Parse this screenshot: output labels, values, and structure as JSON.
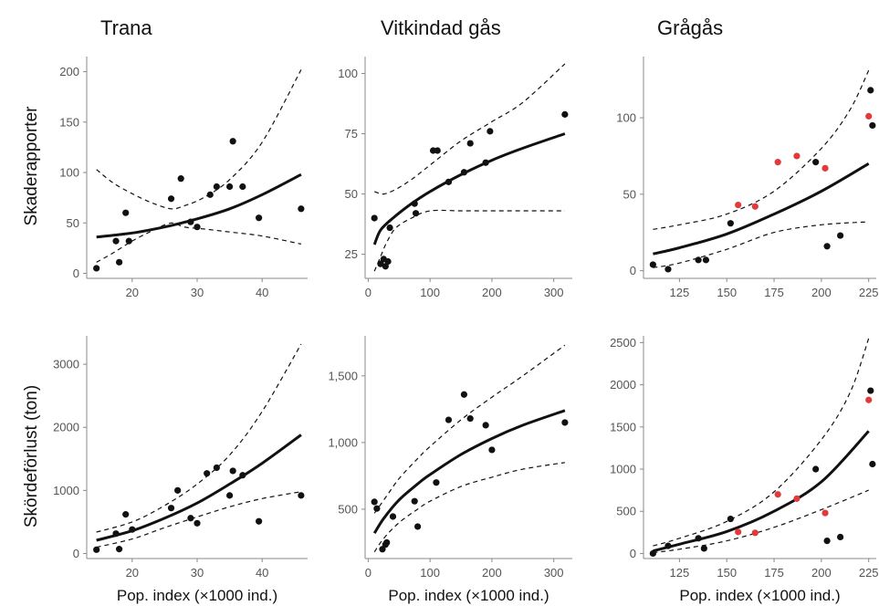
{
  "column_titles": [
    "Trana",
    "Vitkindad gås",
    "Grågås"
  ],
  "row_labels": [
    "Skaderapporter",
    "Skördeförlust (ton)"
  ],
  "colors": {
    "point": "#111111",
    "highlight": "#e03a3a",
    "axis": "#888888",
    "line": "#111111"
  },
  "chart_data": [
    {
      "id": "trana-skador",
      "type": "scatter",
      "title": "",
      "xlabel": "",
      "ylabel": "",
      "xlim": [
        13,
        47
      ],
      "ylim": [
        -5,
        215
      ],
      "xticks": [
        20,
        30,
        40
      ],
      "yticks": [
        0,
        50,
        100,
        150,
        200
      ],
      "points": [
        [
          14.5,
          5
        ],
        [
          17.5,
          32
        ],
        [
          18,
          11
        ],
        [
          19,
          60
        ],
        [
          19.5,
          32
        ],
        [
          26,
          74
        ],
        [
          27.5,
          94
        ],
        [
          29,
          51
        ],
        [
          30,
          46
        ],
        [
          32,
          78
        ],
        [
          33,
          86
        ],
        [
          35,
          86
        ],
        [
          35.5,
          131
        ],
        [
          37,
          86
        ],
        [
          39.5,
          55
        ],
        [
          46,
          64
        ]
      ],
      "fit": [
        [
          14.5,
          36
        ],
        [
          20,
          40
        ],
        [
          25,
          46
        ],
        [
          30,
          54
        ],
        [
          35,
          64
        ],
        [
          40,
          78
        ],
        [
          46,
          98
        ]
      ],
      "ci_upper": [
        [
          14.5,
          103
        ],
        [
          17,
          90
        ],
        [
          20,
          79
        ],
        [
          23,
          70
        ],
        [
          26,
          64
        ],
        [
          28,
          67
        ],
        [
          31,
          75
        ],
        [
          35,
          93
        ],
        [
          40,
          130
        ],
        [
          46,
          202
        ]
      ],
      "ci_lower": [
        [
          14.5,
          11
        ],
        [
          17,
          20
        ],
        [
          20,
          32
        ],
        [
          23,
          42
        ],
        [
          26,
          50
        ],
        [
          28,
          46
        ],
        [
          31,
          44
        ],
        [
          35,
          41
        ],
        [
          40,
          37
        ],
        [
          46,
          29
        ]
      ]
    },
    {
      "id": "vitkindad-skador",
      "type": "scatter",
      "title": "",
      "xlabel": "",
      "ylabel": "",
      "xlim": [
        -5,
        330
      ],
      "ylim": [
        15,
        107
      ],
      "xticks": [
        0,
        100,
        200,
        300
      ],
      "yticks": [
        25,
        50,
        75,
        100
      ],
      "points": [
        [
          10,
          40
        ],
        [
          20,
          21
        ],
        [
          25,
          23
        ],
        [
          28,
          20
        ],
        [
          32,
          22
        ],
        [
          35,
          36
        ],
        [
          75,
          46
        ],
        [
          77,
          42
        ],
        [
          105,
          68
        ],
        [
          112,
          68
        ],
        [
          130,
          55
        ],
        [
          155,
          59
        ],
        [
          165,
          71
        ],
        [
          190,
          63
        ],
        [
          197,
          76
        ],
        [
          318,
          83
        ]
      ],
      "fit": [
        [
          10,
          29
        ],
        [
          20,
          35
        ],
        [
          40,
          40
        ],
        [
          70,
          46
        ],
        [
          100,
          51
        ],
        [
          150,
          58
        ],
        [
          200,
          64
        ],
        [
          250,
          69
        ],
        [
          318,
          75
        ]
      ],
      "ci_upper": [
        [
          10,
          51
        ],
        [
          25,
          50
        ],
        [
          45,
          52
        ],
        [
          70,
          56
        ],
        [
          100,
          62
        ],
        [
          150,
          72
        ],
        [
          200,
          80
        ],
        [
          250,
          88
        ],
        [
          318,
          104
        ]
      ],
      "ci_lower": [
        [
          10,
          18
        ],
        [
          20,
          24
        ],
        [
          30,
          30
        ],
        [
          45,
          36
        ],
        [
          70,
          40
        ],
        [
          100,
          43
        ],
        [
          150,
          43
        ],
        [
          200,
          43
        ],
        [
          250,
          43
        ],
        [
          318,
          43
        ]
      ]
    },
    {
      "id": "gragas-skador",
      "type": "scatter",
      "title": "",
      "xlabel": "",
      "ylabel": "",
      "xlim": [
        106,
        229
      ],
      "ylim": [
        -5,
        140
      ],
      "xticks": [
        125,
        150,
        175,
        200,
        225
      ],
      "yticks": [
        0,
        50,
        100
      ],
      "points": [
        [
          111,
          4
        ],
        [
          119,
          1
        ],
        [
          135,
          7
        ],
        [
          139,
          7
        ],
        [
          152,
          31
        ],
        [
          197,
          71
        ],
        [
          203,
          16
        ],
        [
          210,
          23
        ],
        [
          226,
          118
        ],
        [
          227,
          95
        ]
      ],
      "highlight_points": [
        [
          156,
          43
        ],
        [
          165,
          42
        ],
        [
          177,
          71
        ],
        [
          187,
          75
        ],
        [
          202,
          67
        ],
        [
          225,
          101
        ]
      ],
      "fit": [
        [
          111,
          11
        ],
        [
          125,
          15
        ],
        [
          150,
          24
        ],
        [
          175,
          37
        ],
        [
          200,
          52
        ],
        [
          225,
          70
        ]
      ],
      "ci_upper": [
        [
          111,
          27
        ],
        [
          125,
          30
        ],
        [
          150,
          37
        ],
        [
          175,
          52
        ],
        [
          200,
          80
        ],
        [
          215,
          105
        ],
        [
          225,
          131
        ]
      ],
      "ci_lower": [
        [
          111,
          2
        ],
        [
          125,
          5
        ],
        [
          150,
          14
        ],
        [
          175,
          25
        ],
        [
          200,
          30
        ],
        [
          225,
          32
        ]
      ]
    },
    {
      "id": "trana-skord",
      "type": "scatter",
      "title": "",
      "xlabel": "Pop. index (×1000 ind.)",
      "ylabel": "",
      "xlim": [
        13,
        47
      ],
      "ylim": [
        -80,
        3450
      ],
      "xticks": [
        20,
        30,
        40
      ],
      "yticks": [
        0,
        1000,
        2000,
        3000
      ],
      "points": [
        [
          14.5,
          60
        ],
        [
          17.5,
          315
        ],
        [
          18,
          70
        ],
        [
          19,
          620
        ],
        [
          20,
          380
        ],
        [
          26,
          720
        ],
        [
          27,
          1000
        ],
        [
          29,
          560
        ],
        [
          30,
          480
        ],
        [
          31.5,
          1270
        ],
        [
          33,
          1360
        ],
        [
          35,
          920
        ],
        [
          35.5,
          1310
        ],
        [
          37,
          1240
        ],
        [
          39.5,
          510
        ],
        [
          46,
          920
        ]
      ],
      "fit": [
        [
          14.5,
          210
        ],
        [
          20,
          360
        ],
        [
          25,
          560
        ],
        [
          30,
          800
        ],
        [
          35,
          1100
        ],
        [
          40,
          1430
        ],
        [
          46,
          1880
        ]
      ],
      "ci_upper": [
        [
          14.5,
          340
        ],
        [
          20,
          500
        ],
        [
          25,
          760
        ],
        [
          30,
          1100
        ],
        [
          35,
          1560
        ],
        [
          40,
          2250
        ],
        [
          46,
          3320
        ]
      ],
      "ci_lower": [
        [
          14.5,
          100
        ],
        [
          20,
          230
        ],
        [
          25,
          410
        ],
        [
          30,
          580
        ],
        [
          35,
          740
        ],
        [
          40,
          870
        ],
        [
          46,
          980
        ]
      ]
    },
    {
      "id": "vitkindad-skord",
      "type": "scatter",
      "title": "",
      "xlabel": "Pop. index (×1000 ind.)",
      "ylabel": "",
      "xlim": [
        -5,
        330
      ],
      "ylim": [
        130,
        1800
      ],
      "xticks": [
        0,
        100,
        200,
        300
      ],
      "yticks": [
        500,
        1000,
        1500
      ],
      "yticklabels": [
        "500",
        "1,000",
        "1,500"
      ],
      "points": [
        [
          10,
          555
        ],
        [
          14,
          505
        ],
        [
          23,
          200
        ],
        [
          28,
          235
        ],
        [
          30,
          250
        ],
        [
          40,
          445
        ],
        [
          75,
          560
        ],
        [
          80,
          370
        ],
        [
          110,
          700
        ],
        [
          130,
          1170
        ],
        [
          155,
          1360
        ],
        [
          165,
          1180
        ],
        [
          190,
          1130
        ],
        [
          200,
          945
        ],
        [
          318,
          1150
        ]
      ],
      "fit": [
        [
          10,
          320
        ],
        [
          25,
          430
        ],
        [
          50,
          570
        ],
        [
          80,
          690
        ],
        [
          100,
          760
        ],
        [
          150,
          910
        ],
        [
          200,
          1030
        ],
        [
          250,
          1130
        ],
        [
          318,
          1240
        ]
      ],
      "ci_upper": [
        [
          10,
          470
        ],
        [
          30,
          600
        ],
        [
          50,
          730
        ],
        [
          80,
          880
        ],
        [
          100,
          970
        ],
        [
          150,
          1170
        ],
        [
          200,
          1340
        ],
        [
          250,
          1500
        ],
        [
          318,
          1730
        ]
      ],
      "ci_lower": [
        [
          10,
          180
        ],
        [
          25,
          280
        ],
        [
          50,
          400
        ],
        [
          80,
          500
        ],
        [
          100,
          560
        ],
        [
          150,
          670
        ],
        [
          200,
          740
        ],
        [
          250,
          800
        ],
        [
          318,
          850
        ]
      ]
    },
    {
      "id": "gragas-skord",
      "type": "scatter",
      "title": "",
      "xlabel": "Pop. index (×1000 ind.)",
      "ylabel": "",
      "xlim": [
        106,
        229
      ],
      "ylim": [
        -60,
        2580
      ],
      "xticks": [
        125,
        150,
        175,
        200,
        225
      ],
      "yticks": [
        0,
        500,
        1000,
        1500,
        2000,
        2500
      ],
      "points": [
        [
          111,
          0
        ],
        [
          119,
          90
        ],
        [
          135,
          180
        ],
        [
          138,
          60
        ],
        [
          152,
          410
        ],
        [
          197,
          1000
        ],
        [
          203,
          150
        ],
        [
          210,
          195
        ],
        [
          226,
          1930
        ],
        [
          227,
          1060
        ]
      ],
      "highlight_points": [
        [
          156,
          255
        ],
        [
          165,
          245
        ],
        [
          177,
          700
        ],
        [
          187,
          650
        ],
        [
          202,
          480
        ],
        [
          225,
          1820
        ]
      ],
      "fit": [
        [
          111,
          30
        ],
        [
          125,
          110
        ],
        [
          150,
          260
        ],
        [
          175,
          500
        ],
        [
          200,
          850
        ],
        [
          225,
          1450
        ]
      ],
      "ci_upper": [
        [
          111,
          90
        ],
        [
          125,
          180
        ],
        [
          150,
          380
        ],
        [
          175,
          730
        ],
        [
          200,
          1350
        ],
        [
          215,
          1900
        ],
        [
          225,
          2550
        ]
      ],
      "ci_lower": [
        [
          111,
          10
        ],
        [
          125,
          50
        ],
        [
          150,
          150
        ],
        [
          175,
          310
        ],
        [
          200,
          520
        ],
        [
          225,
          750
        ]
      ]
    }
  ]
}
